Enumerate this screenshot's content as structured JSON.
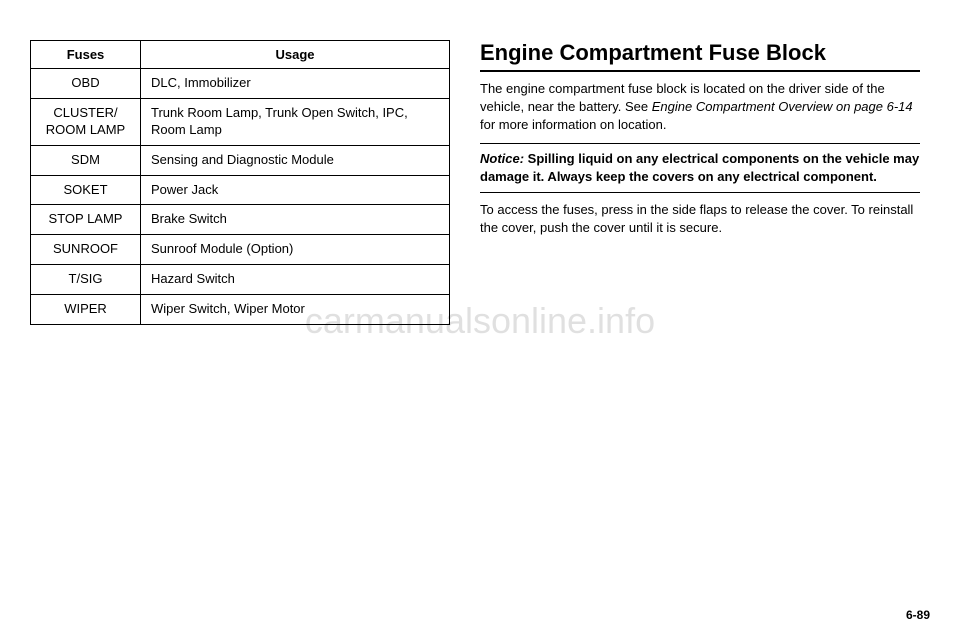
{
  "table": {
    "headers": [
      "Fuses",
      "Usage"
    ],
    "rows": [
      [
        "OBD",
        "DLC, Immobilizer"
      ],
      [
        "CLUSTER/ ROOM LAMP",
        "Trunk Room Lamp, Trunk Open Switch, IPC, Room Lamp"
      ],
      [
        "SDM",
        "Sensing and Diagnostic Module"
      ],
      [
        "SOKET",
        "Power Jack"
      ],
      [
        "STOP LAMP",
        "Brake Switch"
      ],
      [
        "SUNROOF",
        "Sunroof Module (Option)"
      ],
      [
        "T/SIG",
        "Hazard Switch"
      ],
      [
        "WIPER",
        "Wiper Switch, Wiper Motor"
      ]
    ]
  },
  "right": {
    "heading": "Engine Compartment Fuse Block",
    "para1a": "The engine compartment fuse block is located on the driver side of the vehicle, near the battery. See ",
    "para1b": "Engine Compartment Overview on page 6-14",
    "para1c": " for more information on location.",
    "notice_label": "Notice:",
    "notice_text1": " Spilling liquid on any electrical components on the vehicle may damage it. Always keep the covers on any electrical component.",
    "para2": "To access the fuses, press in the side flaps to release the cover. To reinstall the cover, push the cover until it is secure."
  },
  "watermark": "carmanualsonline.info",
  "page_number": "6-89"
}
